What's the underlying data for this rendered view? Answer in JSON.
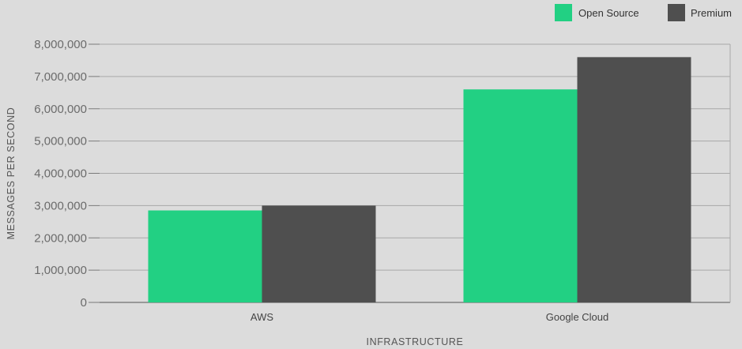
{
  "chart_data": {
    "type": "bar",
    "categories": [
      "AWS",
      "Google Cloud"
    ],
    "series": [
      {
        "name": "Open Source",
        "color": "#22d083",
        "values": [
          2850000,
          6600000
        ]
      },
      {
        "name": "Premium",
        "color": "#4f4f4f",
        "values": [
          3000000,
          7600000
        ]
      }
    ],
    "xlabel": "INFRASTRUCTURE",
    "ylabel": "MESSAGES PER SECOND",
    "ylim": [
      0,
      8000000
    ],
    "yticks": [
      0,
      1000000,
      2000000,
      3000000,
      4000000,
      5000000,
      6000000,
      7000000,
      8000000
    ],
    "ytick_labels": [
      "0",
      "1,000,000",
      "2,000,000",
      "3,000,000",
      "4,000,000",
      "5,000,000",
      "6,000,000",
      "7,000,000",
      "8,000,000"
    ],
    "grid": true,
    "legend_position": "top-right"
  }
}
